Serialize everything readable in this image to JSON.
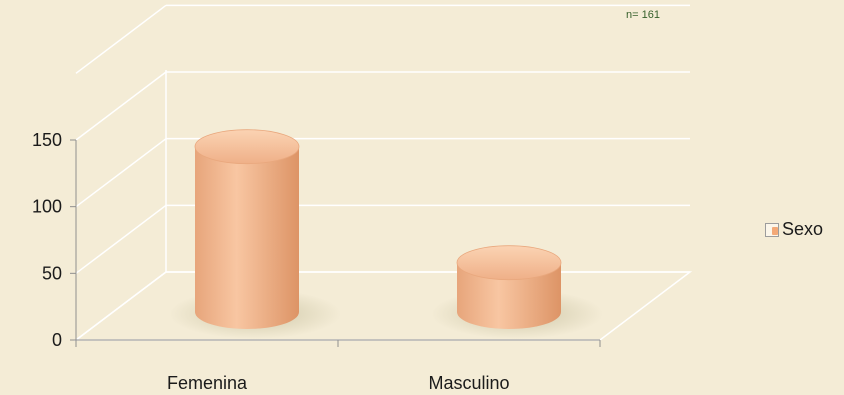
{
  "chart_data": {
    "type": "bar",
    "style": "3d-cylinder",
    "categories": [
      "Femenina",
      "Masculino"
    ],
    "series": [
      {
        "name": "Sexo",
        "values": [
          124,
          37
        ],
        "color": "#f3b48a"
      }
    ],
    "ylim": [
      0,
      150
    ],
    "yticks": [
      "0",
      "50",
      "100",
      "150"
    ],
    "grid": true,
    "legend": "right",
    "annotation": "n= 161"
  }
}
